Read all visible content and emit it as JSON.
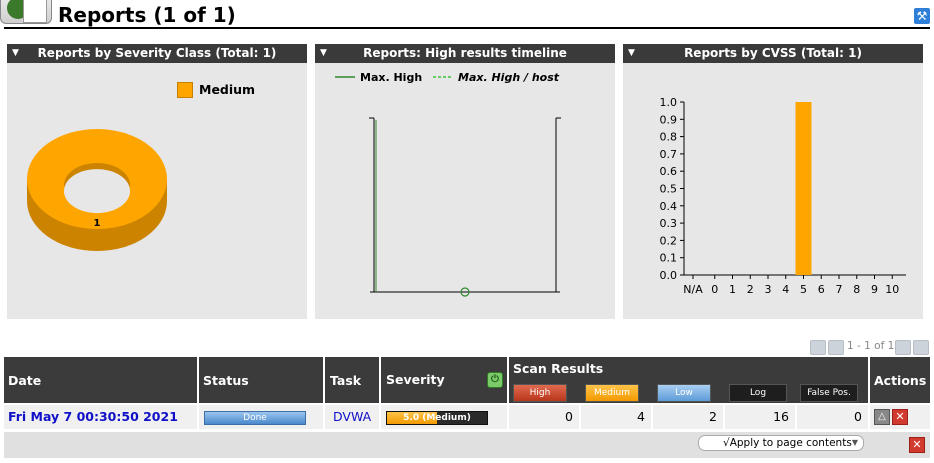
{
  "header": {
    "title": "Reports (1 of 1)"
  },
  "panels": {
    "severity": {
      "title": "Reports by Severity Class (Total: 1)",
      "legend_label": "Medium",
      "slice_label": "1",
      "color": "#ffa500"
    },
    "timeline": {
      "title": "Reports: High results timeline",
      "legend_solid": "Max. High",
      "legend_dashed": "Max. High / host"
    },
    "cvss": {
      "title": "Reports by CVSS (Total: 1)"
    }
  },
  "chart_data": [
    {
      "type": "pie",
      "categories": [
        "Medium"
      ],
      "values": [
        1
      ],
      "title": "Reports by Severity Class (Total: 1)"
    },
    {
      "type": "line",
      "title": "Reports: High results timeline",
      "series": [
        {
          "name": "Max. High",
          "values": [
            0
          ]
        },
        {
          "name": "Max. High / host",
          "values": [
            0
          ]
        }
      ]
    },
    {
      "type": "bar",
      "title": "Reports by CVSS (Total: 1)",
      "categories": [
        "N/A",
        "0",
        "1",
        "2",
        "3",
        "4",
        "5",
        "6",
        "7",
        "8",
        "9",
        "10"
      ],
      "values": [
        0,
        0,
        0,
        0,
        0,
        0,
        1,
        0,
        0,
        0,
        0,
        0
      ],
      "yticks": [
        "0.0",
        "0.1",
        "0.2",
        "0.3",
        "0.4",
        "0.5",
        "0.6",
        "0.7",
        "0.8",
        "0.9",
        "1.0"
      ],
      "ylim": [
        0,
        1
      ],
      "color": "#ffa500"
    }
  ],
  "pagination": {
    "text": "1 - 1 of 1"
  },
  "table": {
    "headers": {
      "date": "Date",
      "status": "Status",
      "task": "Task",
      "severity": "Severity",
      "scan_results": "Scan Results",
      "actions": "Actions"
    },
    "scan_columns": [
      "High",
      "Medium",
      "Low",
      "Log",
      "False Pos."
    ],
    "row": {
      "date": "Fri May 7 00:30:50 2021",
      "status": "Done",
      "task": "DVWA",
      "severity": "5.0 (Medium)",
      "severity_fraction": 0.5,
      "high": "0",
      "medium": "4",
      "low": "2",
      "log": "16",
      "false_pos": "0"
    },
    "apply_label": "√Apply to page contents"
  },
  "colors": {
    "dark_header": "#3b3b3b",
    "medium": "#ffa500",
    "high": "#d9534f",
    "low": "#7fb3e6",
    "link": "#1010c8"
  },
  "icons": [
    "report-logo-icon",
    "wrench-icon",
    "refresh-icon",
    "delta-icon",
    "delete-icon"
  ]
}
